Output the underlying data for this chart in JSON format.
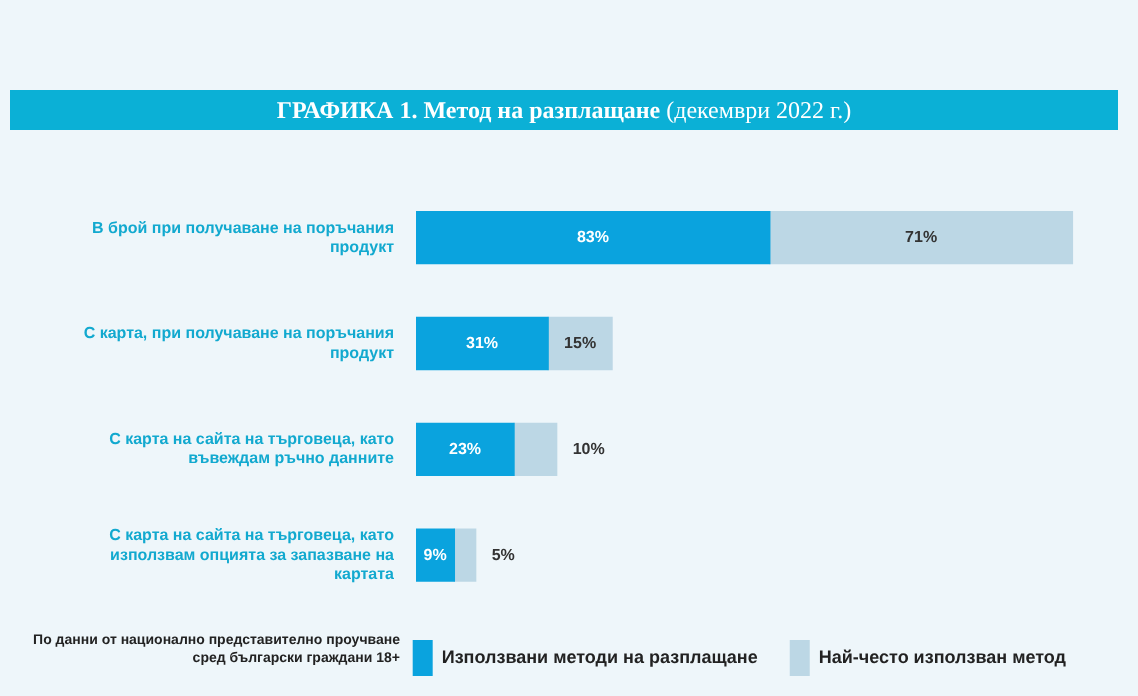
{
  "chart_data": {
    "type": "bar",
    "orientation": "horizontal",
    "stacked": true,
    "title": "ГРАФИКА 1. Метод на разплащане",
    "subtitle": "(декември 2022 г.)",
    "categories": [
      "В брой при получаване на поръчания продукт",
      "С карта, при получаване на поръчания продукт",
      "С карта на сайта на търговеца, като въвеждам ръчно данните",
      "С карта на сайта на търговеца, като използвам опцията за запазване на картата"
    ],
    "series": [
      {
        "name": "Използвани методи на разплащане",
        "color": "#0aa3de",
        "values": [
          83,
          31,
          23,
          9
        ],
        "value_labels": [
          "83%",
          "31%",
          "23%",
          "9%"
        ]
      },
      {
        "name": "Най-често използван метод",
        "color": "#bcd7e5",
        "values": [
          71,
          15,
          10,
          5
        ],
        "value_labels": [
          "71%",
          "15%",
          "10%",
          "5%"
        ]
      }
    ],
    "legend": "bottom right",
    "grid": false,
    "tick_labels": "y",
    "annotations": [
      "По данни от национално представително проучване сред български граждани 18+"
    ]
  }
}
